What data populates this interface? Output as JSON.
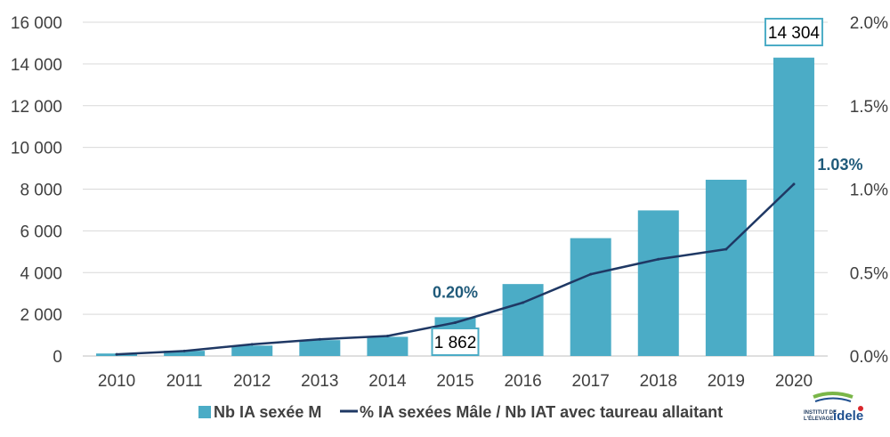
{
  "chart_data": {
    "type": "bar",
    "categories": [
      "2010",
      "2011",
      "2012",
      "2013",
      "2014",
      "2015",
      "2016",
      "2017",
      "2018",
      "2019",
      "2020"
    ],
    "series": [
      {
        "name": "Nb IA sexée M",
        "type": "bar",
        "axis": "left",
        "color": "#4bacc6",
        "values": [
          120,
          250,
          500,
          760,
          920,
          1862,
          3450,
          5650,
          6980,
          8450,
          14304
        ]
      },
      {
        "name": "% IA sexées Mâle / Nb IAT avec taureau allaitant",
        "type": "line",
        "axis": "right",
        "color": "#1f3864",
        "values": [
          0.01,
          0.03,
          0.07,
          0.1,
          0.12,
          0.2,
          0.32,
          0.49,
          0.58,
          0.64,
          1.03
        ]
      }
    ],
    "y_left": {
      "ylim": [
        0,
        16000
      ],
      "ticks": [
        0,
        2000,
        4000,
        6000,
        8000,
        10000,
        12000,
        14000,
        16000
      ],
      "tick_labels": [
        "0",
        "2 000",
        "4 000",
        "6 000",
        "8 000",
        "10 000",
        "12 000",
        "14 000",
        "16 000"
      ]
    },
    "y_right": {
      "ylim": [
        0,
        2.0
      ],
      "ticks": [
        0,
        0.5,
        1.0,
        1.5,
        2.0
      ],
      "tick_labels": [
        "0.0%",
        "0.5%",
        "1.0%",
        "1.5%",
        "2.0%"
      ]
    },
    "annotations": {
      "pct": [
        {
          "index": 5,
          "text": "0.20%"
        },
        {
          "index": 10,
          "text": "1.03%"
        }
      ],
      "boxed": [
        {
          "index": 5,
          "text": "1 862"
        },
        {
          "index": 10,
          "text": "14 304"
        }
      ]
    },
    "grid": true,
    "legend_position": "bottom"
  },
  "logo": {
    "small_line1": "INSTITUT DE",
    "small_line2": "L'ÉLEVAGE",
    "brand": "idele"
  }
}
